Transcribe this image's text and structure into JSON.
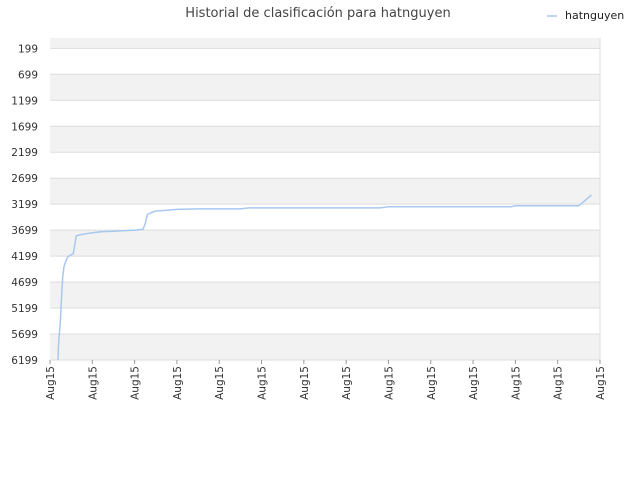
{
  "chart_data": {
    "type": "line",
    "title": "Historial de clasificación para hatnguyen",
    "xlabel": "",
    "ylabel": "",
    "y_axis_reversed": true,
    "ylim": [
      6199,
      0
    ],
    "yticks": [
      199,
      699,
      1199,
      1699,
      2199,
      2699,
      3199,
      3699,
      4199,
      4699,
      5199,
      5699,
      6199
    ],
    "xticks": [
      "Aug15",
      "Aug15",
      "Aug15",
      "Aug15",
      "Aug15",
      "Aug15",
      "Aug15",
      "Aug15",
      "Aug15",
      "Aug15",
      "Aug15",
      "Aug15",
      "Aug15",
      "Aug15"
    ],
    "xlim": [
      0,
      13
    ],
    "grid": true,
    "legend_position": "top-right",
    "colors": {
      "series": "#a8c8f0",
      "band": "#f2f2f2",
      "grid": "#dddddd"
    },
    "series": [
      {
        "name": "hatnguyen",
        "x": [
          0.19,
          0.2,
          0.22,
          0.24,
          0.26,
          0.28,
          0.3,
          0.33,
          0.37,
          0.42,
          0.55,
          0.62,
          0.7,
          0.85,
          1.0,
          1.2,
          1.5,
          2.0,
          2.2,
          2.26,
          2.3,
          2.4,
          2.5,
          2.7,
          3.0,
          3.5,
          4.0,
          4.5,
          4.7,
          5.5,
          6.5,
          7.8,
          8.0,
          9.0,
          10.0,
          10.9,
          11.0,
          12.5,
          12.8
        ],
        "y": [
          6199,
          5900,
          5700,
          5500,
          5200,
          4900,
          4600,
          4400,
          4300,
          4210,
          4150,
          3810,
          3790,
          3770,
          3750,
          3730,
          3720,
          3700,
          3680,
          3550,
          3400,
          3360,
          3330,
          3320,
          3300,
          3290,
          3290,
          3290,
          3270,
          3270,
          3270,
          3270,
          3250,
          3250,
          3250,
          3250,
          3230,
          3230,
          3020
        ]
      }
    ]
  }
}
